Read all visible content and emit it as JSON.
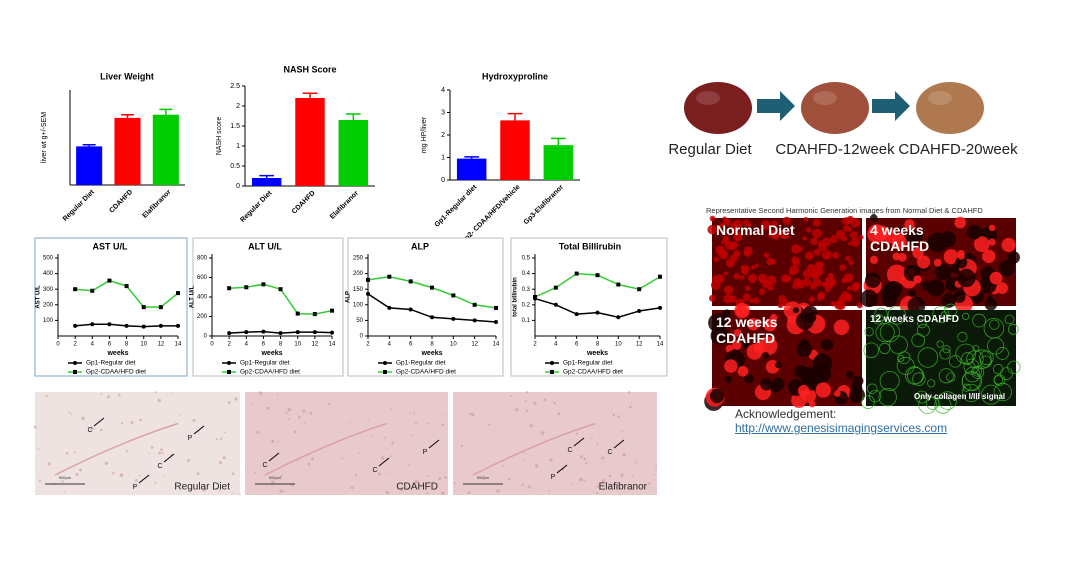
{
  "chart_data": [
    {
      "type": "bar",
      "title": "Liver Weight",
      "y_label": "liver wt g+/-SEM",
      "categories": [
        "Regular Diet",
        "CDAHFD",
        "Elafibranor"
      ],
      "values": [
        1.22,
        2.12,
        2.22
      ],
      "errors": [
        0.05,
        0.1,
        0.17
      ],
      "colors": [
        "#0000ff",
        "#ff0000",
        "#00cc00"
      ],
      "ylim": [
        0,
        3
      ]
    },
    {
      "type": "bar",
      "title": "NASH Score",
      "y_label": "NASH score",
      "categories": [
        "Regular Diet",
        "CDAHFD",
        "Elafibranor"
      ],
      "values": [
        0.2,
        2.2,
        1.65
      ],
      "errors": [
        0.06,
        0.12,
        0.15
      ],
      "colors": [
        "#0000ff",
        "#ff0000",
        "#00cc00"
      ],
      "ylim": [
        0,
        2.5
      ],
      "yticks": [
        0,
        0.5,
        1,
        1.5,
        2,
        2.5
      ]
    },
    {
      "type": "bar",
      "title": "Hydroxyproline",
      "y_label": "mg HP/liver",
      "categories": [
        "Gp1-Regular diet",
        "Gp2- CDAA/HFD/Vehicle",
        "Gp3-Elafibranor"
      ],
      "values": [
        0.95,
        2.65,
        1.55
      ],
      "errors": [
        0.08,
        0.3,
        0.3
      ],
      "colors": [
        "#0000ff",
        "#ff0000",
        "#00cc00"
      ],
      "ylim": [
        0,
        4
      ],
      "yticks": [
        0,
        1,
        2,
        3,
        4
      ]
    },
    {
      "type": "line",
      "title": "AST U/L",
      "x_label": "weeks",
      "y_label": "AST U/L",
      "x": [
        2,
        4,
        6,
        8,
        10,
        12,
        14
      ],
      "xlim": [
        0,
        14
      ],
      "xticks": [
        0,
        2,
        4,
        6,
        8,
        10,
        12,
        14
      ],
      "ylim": [
        0,
        500
      ],
      "yticks": [
        100,
        200,
        300,
        400,
        500
      ],
      "series": [
        {
          "name": "Gp1-Regular diet",
          "color": "#000000",
          "marker": "circle",
          "values": [
            65,
            75,
            75,
            65,
            60,
            65,
            65
          ]
        },
        {
          "name": "Gp2-CDAA/HFD diet",
          "color": "#33cc33",
          "marker": "square",
          "values": [
            300,
            290,
            355,
            320,
            185,
            185,
            275
          ]
        }
      ]
    },
    {
      "type": "line",
      "title": "ALT U/L",
      "x_label": "weeks",
      "y_label": "ALT U/L",
      "x": [
        2,
        4,
        6,
        8,
        10,
        12,
        14
      ],
      "xlim": [
        0,
        14
      ],
      "xticks": [
        0,
        2,
        4,
        6,
        8,
        10,
        12,
        14
      ],
      "ylim": [
        0,
        800
      ],
      "yticks": [
        0,
        200,
        400,
        600,
        800
      ],
      "series": [
        {
          "name": "Gp1-Regular diet",
          "color": "#000000",
          "marker": "circle",
          "values": [
            30,
            40,
            45,
            30,
            40,
            40,
            35
          ]
        },
        {
          "name": "Gp2-CDAA/HFD diet",
          "color": "#33cc33",
          "marker": "square",
          "values": [
            490,
            500,
            530,
            480,
            230,
            225,
            260
          ]
        }
      ]
    },
    {
      "type": "line",
      "title": "ALP",
      "x_label": "weeks",
      "y_label": "ALP",
      "x": [
        2,
        4,
        6,
        8,
        10,
        12,
        14
      ],
      "xlim": [
        2,
        14
      ],
      "xticks": [
        2,
        4,
        6,
        8,
        10,
        12,
        14
      ],
      "ylim": [
        0,
        250
      ],
      "yticks": [
        0,
        50,
        100,
        150,
        200,
        250
      ],
      "series": [
        {
          "name": "Gp1-Regular diet",
          "color": "#000000",
          "marker": "circle",
          "values": [
            135,
            90,
            85,
            60,
            55,
            50,
            45
          ]
        },
        {
          "name": "Gp2-CDAA/HFD diet",
          "color": "#33cc33",
          "marker": "square",
          "values": [
            180,
            190,
            175,
            155,
            130,
            100,
            90
          ]
        }
      ]
    },
    {
      "type": "line",
      "title": "Total Billirubin",
      "x_label": "weeks",
      "y_label": "total billirubin",
      "x": [
        2,
        4,
        6,
        8,
        10,
        12,
        14
      ],
      "xlim": [
        2,
        14
      ],
      "xticks": [
        2,
        4,
        6,
        8,
        10,
        12,
        14
      ],
      "ylim": [
        0,
        0.5
      ],
      "yticks": [
        0.1,
        0.2,
        0.3,
        0.4,
        0.5
      ],
      "series": [
        {
          "name": "Gp1-Regular diet",
          "color": "#000000",
          "marker": "circle",
          "values": [
            0.24,
            0.2,
            0.14,
            0.15,
            0.12,
            0.16,
            0.18
          ]
        },
        {
          "name": "Gp2-CDAA/HFD diet",
          "color": "#33cc33",
          "marker": "square",
          "values": [
            0.25,
            0.31,
            0.4,
            0.39,
            0.33,
            0.3,
            0.38
          ]
        }
      ]
    }
  ],
  "liver_images": [
    "Regular Diet",
    "CDAHFD-12week",
    "CDAHFD-20week"
  ],
  "shg": {
    "title": "Representative Second Harmonic Generation images from Normal Diet & CDAHFD",
    "panels": [
      {
        "label": "Normal Diet"
      },
      {
        "label": "4 weeks CDAHFD"
      },
      {
        "label": "12 weeks CDAHFD"
      },
      {
        "label": "12 weeks CDAHFD",
        "note": "Only collagen I/III signal"
      }
    ]
  },
  "acknowledgement": {
    "label": "Acknowledgement:",
    "link": "http://www.genesisimagingservices.com"
  },
  "histology": [
    {
      "label": "Regular Diet",
      "scale": "500μm",
      "markers": [
        "C",
        "P",
        "C",
        "P"
      ]
    },
    {
      "label": "CDAHFD",
      "scale": "500μm",
      "markers": [
        "C",
        "C",
        "P"
      ]
    },
    {
      "label": "Elafibranor",
      "scale": "500μm",
      "markers": [
        "P",
        "C",
        "C"
      ]
    }
  ]
}
